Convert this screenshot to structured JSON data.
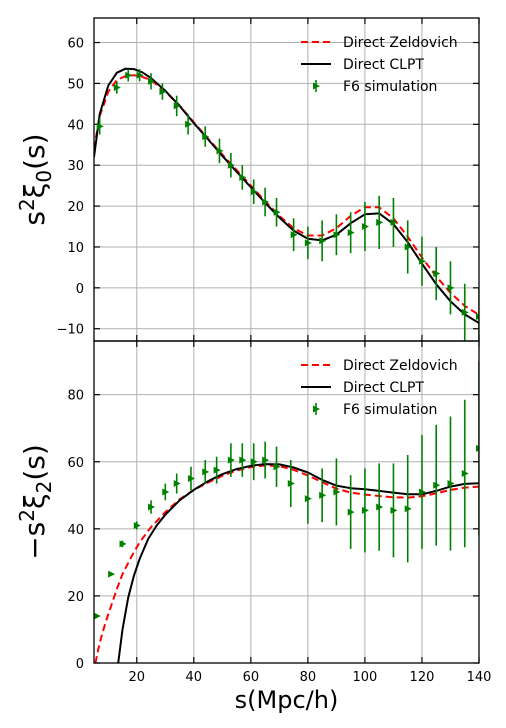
{
  "chart_data": [
    {
      "type": "line",
      "panel": "top",
      "ylabel": "s^2ξ_0(s)",
      "xlim": [
        5,
        140
      ],
      "ylim": [
        -13,
        66
      ],
      "xticks": [
        20,
        40,
        60,
        80,
        100,
        120,
        140
      ],
      "yticks": [
        -10,
        0,
        10,
        20,
        30,
        40,
        50,
        60
      ],
      "grid": true,
      "legend": "top-right",
      "series": [
        {
          "name": "Direct Zeldovich",
          "style": "dashed",
          "color": "#ff0000",
          "x": [
            5,
            7,
            10,
            13,
            16,
            19,
            22,
            25,
            30,
            35,
            40,
            45,
            50,
            55,
            60,
            65,
            70,
            75,
            80,
            85,
            90,
            95,
            100,
            105,
            110,
            115,
            120,
            125,
            130,
            135,
            140
          ],
          "y": [
            34,
            42,
            48,
            50.8,
            51.8,
            52.0,
            51.6,
            50.8,
            48.0,
            44.6,
            40.5,
            36.5,
            32.6,
            28.8,
            25.0,
            21.2,
            17.6,
            14.6,
            12.8,
            12.8,
            14.6,
            17.6,
            19.7,
            19.7,
            17.0,
            12.5,
            7.4,
            2.8,
            -1.2,
            -4.4,
            -6.6
          ]
        },
        {
          "name": "Direct CLPT",
          "style": "solid",
          "color": "#000000",
          "x": [
            5,
            7,
            10,
            13,
            16,
            19,
            22,
            25,
            30,
            35,
            40,
            45,
            50,
            55,
            60,
            65,
            70,
            75,
            80,
            85,
            90,
            95,
            100,
            105,
            110,
            115,
            120,
            125,
            130,
            135,
            140
          ],
          "y": [
            32,
            42.5,
            49.5,
            52.6,
            53.6,
            53.5,
            52.7,
            51.3,
            48.2,
            44.5,
            40.3,
            36.3,
            32.3,
            28.4,
            24.6,
            20.8,
            17.2,
            14.0,
            12.0,
            11.6,
            13.0,
            15.8,
            18.0,
            18.2,
            15.6,
            11.2,
            5.9,
            0.9,
            -3.3,
            -6.5,
            -8.6
          ]
        },
        {
          "name": "F6 simulation",
          "style": "errorbar",
          "color": "#008000",
          "x": [
            7,
            13,
            17,
            21,
            25,
            29,
            34,
            38,
            44,
            49,
            53,
            57,
            61,
            65,
            69,
            75,
            80,
            85,
            90,
            95,
            100,
            105,
            110,
            115,
            120,
            125,
            130,
            135,
            140
          ],
          "y": [
            39.5,
            49,
            52,
            52,
            50.5,
            48,
            44.5,
            40,
            37,
            33.5,
            30,
            27,
            23.5,
            21,
            18.5,
            13,
            11,
            11.5,
            13,
            13.5,
            15,
            16,
            16,
            10,
            6.5,
            3.5,
            0,
            -6,
            -7
          ],
          "err": [
            2,
            1.5,
            1.5,
            1.5,
            2,
            2,
            2.5,
            2.5,
            2.5,
            3,
            3,
            3,
            3,
            3.5,
            3.5,
            4,
            4,
            5,
            5,
            5,
            6,
            6.5,
            6,
            6.5,
            6,
            6.5,
            6.5,
            7,
            7
          ]
        }
      ]
    },
    {
      "type": "line",
      "panel": "bottom",
      "xlabel": "s(Mpc/h)",
      "ylabel": "−s^2ξ_2(s)",
      "xlim": [
        5,
        140
      ],
      "ylim": [
        0,
        96
      ],
      "xticks": [
        20,
        40,
        60,
        80,
        100,
        120,
        140
      ],
      "yticks": [
        0,
        20,
        40,
        60,
        80
      ],
      "grid": true,
      "legend": "top-right",
      "series": [
        {
          "name": "Direct Zeldovich",
          "style": "dashed",
          "color": "#ff0000",
          "x": [
            5.5,
            7,
            9,
            11,
            13,
            15,
            18,
            21,
            25,
            30,
            35,
            40,
            45,
            50,
            55,
            60,
            65,
            70,
            75,
            80,
            85,
            90,
            95,
            100,
            105,
            110,
            115,
            120,
            125,
            130,
            135,
            140
          ],
          "y": [
            0,
            6,
            12,
            17,
            22,
            26.5,
            31.5,
            36,
            40.5,
            45.0,
            48.8,
            51.6,
            53.8,
            55.8,
            57.4,
            58.4,
            58.9,
            58.7,
            57.6,
            55.9,
            53.9,
            52.0,
            50.8,
            50.2,
            49.8,
            49.4,
            49.3,
            49.7,
            50.6,
            51.6,
            52.3,
            52.6
          ]
        },
        {
          "name": "Direct CLPT",
          "style": "solid",
          "color": "#000000",
          "x": [
            13.5,
            15,
            17,
            19,
            21,
            24,
            27,
            30,
            35,
            40,
            45,
            50,
            55,
            60,
            65,
            70,
            75,
            80,
            85,
            90,
            95,
            100,
            105,
            110,
            115,
            120,
            125,
            130,
            135,
            140
          ],
          "y": [
            0,
            10,
            19.5,
            26,
            31,
            37,
            41,
            44.2,
            48.5,
            51.6,
            54.2,
            56.3,
            57.8,
            58.8,
            59.3,
            59.2,
            58.3,
            56.8,
            54.6,
            52.9,
            52.1,
            51.8,
            51.3,
            50.8,
            50.3,
            50.3,
            51.3,
            52.6,
            53.4,
            53.6
          ]
        },
        {
          "name": "F6 simulation",
          "style": "errorbar",
          "color": "#008000",
          "x": [
            6,
            11,
            15,
            20,
            25,
            30,
            34,
            39,
            44,
            48,
            53,
            57,
            61,
            65,
            69,
            74,
            80,
            85,
            90,
            95,
            100,
            105,
            110,
            115,
            120,
            125,
            130,
            135,
            140
          ],
          "y": [
            14,
            26.5,
            35.5,
            41,
            46.5,
            51,
            53.5,
            55,
            57,
            57.5,
            60.5,
            60.5,
            60,
            60.5,
            58.5,
            53.5,
            49,
            50,
            51,
            45,
            45.5,
            46.5,
            45.5,
            46,
            51,
            53,
            53.5,
            56.5,
            64
          ],
          "err": [
            0.5,
            0.5,
            1,
            1.2,
            2,
            2.5,
            3,
            3.5,
            3.5,
            4,
            5,
            5,
            5.5,
            5.5,
            6,
            7,
            7.5,
            8,
            10,
            11,
            12.5,
            13,
            14,
            16,
            17,
            18,
            20,
            22,
            26
          ]
        }
      ]
    }
  ]
}
